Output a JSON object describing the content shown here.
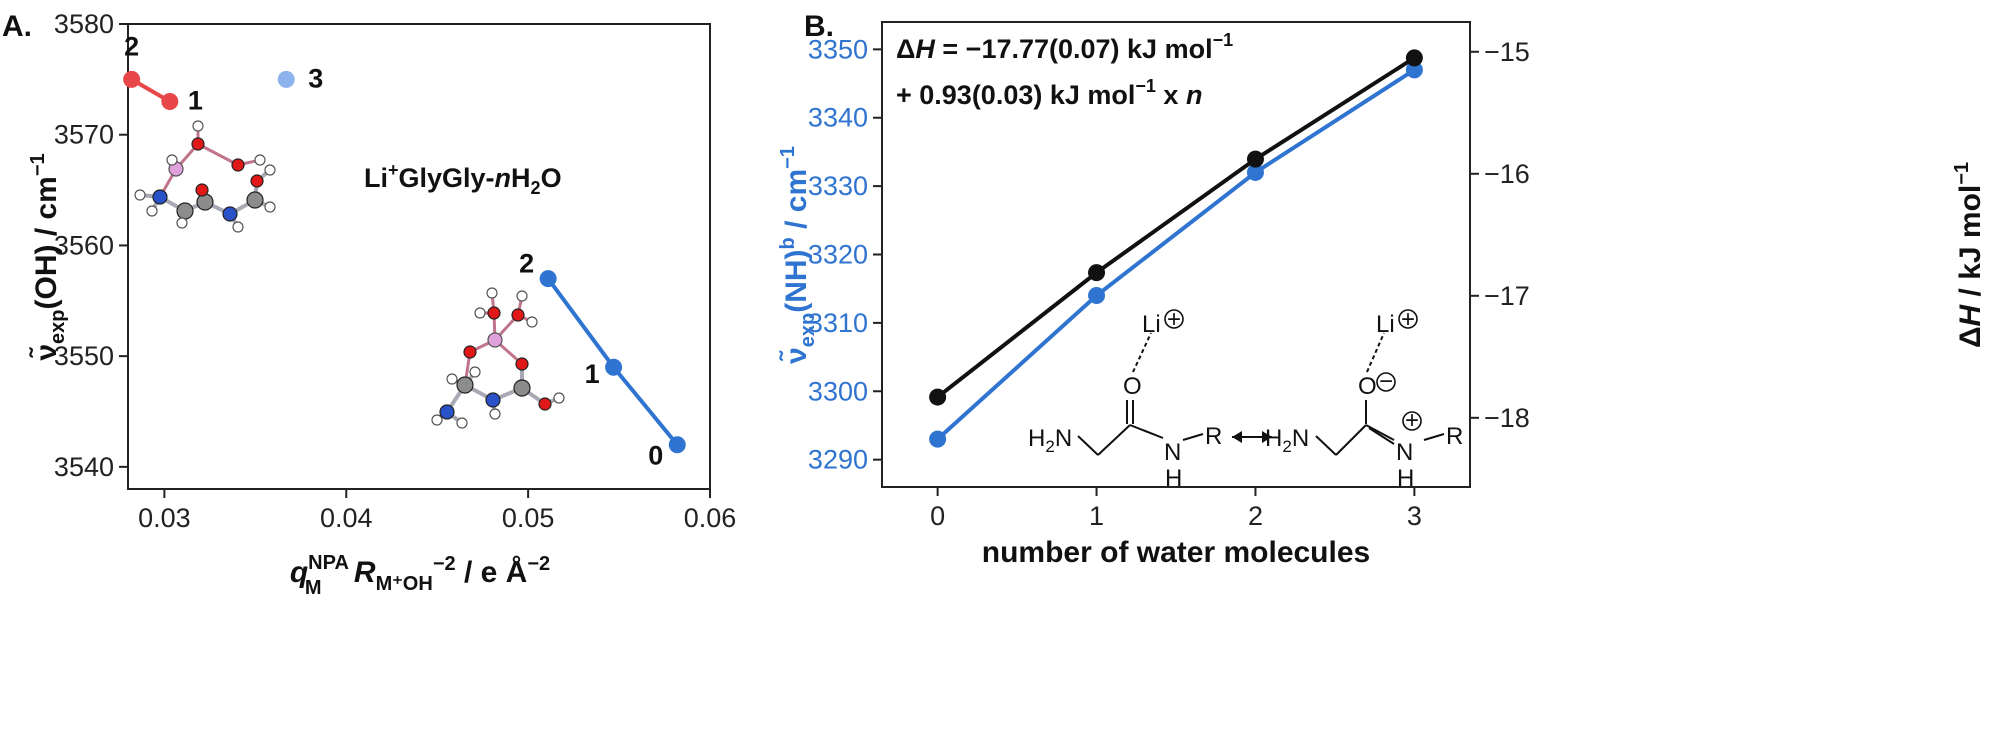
{
  "chart_data": [
    {
      "type": "scatter",
      "panel_label": "A.",
      "xlabel_parts": {
        "q": "q",
        "q_sup": "NPA",
        "q_sub": "M",
        "r": " R",
        "r_sub": "M⁺OH",
        "r_sup": "−2",
        "unit": " / e Å",
        "unit_sup": "−2"
      },
      "ylabel_parts": {
        "nu": "ν̃",
        "sub": "exp",
        "main": "(OH) / cm",
        "sup": "−1"
      },
      "xlim": [
        0.028,
        0.06
      ],
      "ylim": [
        3538,
        3580
      ],
      "xticks": [
        0.03,
        0.04,
        0.05,
        0.06
      ],
      "xtick_labels": [
        "0.03",
        "0.04",
        "0.05",
        "0.06"
      ],
      "yticks": [
        3540,
        3550,
        3560,
        3570,
        3580
      ],
      "ytick_labels": [
        "3540",
        "3550",
        "3560",
        "3570",
        "3580"
      ],
      "annotation": {
        "prefix": "Li",
        "sup": "+",
        "body": "GlyGly-",
        "n": "n",
        "h": "H",
        "sub": "2",
        "o": "O"
      },
      "series": [
        {
          "color": "#e8474a",
          "connected": true,
          "points": [
            {
              "x": 0.0282,
              "y": 3575,
              "label": "2"
            },
            {
              "x": 0.0303,
              "y": 3573,
              "label": "1"
            }
          ]
        },
        {
          "color": "#8db3ec",
          "connected": false,
          "points": [
            {
              "x": 0.0367,
              "y": 3575,
              "label": "3"
            }
          ]
        },
        {
          "color": "#2f74d0",
          "connected": true,
          "points": [
            {
              "x": 0.0511,
              "y": 3557,
              "label": "2"
            },
            {
              "x": 0.0547,
              "y": 3549,
              "label": "1"
            },
            {
              "x": 0.0582,
              "y": 3542,
              "label": "0"
            }
          ]
        }
      ],
      "grid": false
    },
    {
      "type": "line",
      "panel_label": "B.",
      "xlabel": "number of water molecules",
      "ylabel_left_parts": {
        "nu": "ν̃",
        "sub": "exp",
        "main": "(NH)",
        "sup": "b",
        "unit": " / cm",
        "unit_sup": "−1"
      },
      "ylabel_right_parts": {
        "delta": "Δ",
        "h": "H",
        "unit": " / kJ mol",
        "sup": "−1"
      },
      "xlim": [
        -0.35,
        3.35
      ],
      "ylim_left": [
        3286,
        3354
      ],
      "ylim_right": [
        -18.567,
        -14.756
      ],
      "xticks": [
        0,
        1,
        2,
        3
      ],
      "xtick_labels": [
        "0",
        "1",
        "2",
        "3"
      ],
      "yticks_left": [
        3290,
        3300,
        3310,
        3320,
        3330,
        3340,
        3350
      ],
      "ytick_labels_left": [
        "3290",
        "3300",
        "3310",
        "3320",
        "3330",
        "3340",
        "3350"
      ],
      "yticks_right": [
        -18,
        -17,
        -16,
        -15
      ],
      "ytick_labels_right": [
        "−18",
        "−17",
        "−16",
        "−15"
      ],
      "equation": {
        "line1_delta": "Δ",
        "line1_h": "H",
        "line1_rest": " = −17.77(0.07) kJ mol",
        "line1_sup": "−1",
        "line2_rest": "+ 0.93(0.03) kJ mol",
        "line2_sup": "−1",
        "line2_x": " x ",
        "line2_n": "n"
      },
      "series": [
        {
          "axis": "left",
          "color": "#2f74d0",
          "x": [
            0,
            1,
            2,
            3
          ],
          "values": [
            3293,
            3314,
            3332,
            3347
          ]
        },
        {
          "axis": "right",
          "color": "#111111",
          "x": [
            0,
            1,
            2,
            3
          ],
          "values": [
            -17.83,
            -16.81,
            -15.88,
            -15.05
          ]
        }
      ],
      "chem_labels": {
        "li1": "Li",
        "o1": "O",
        "h2n1": "H",
        "h2n1_sub": "2",
        "h2n1_n": "N",
        "n1": "N",
        "h1": "H",
        "r1": "R",
        "li2": "Li",
        "o2": "O",
        "h2n2": "H",
        "h2n2_sub": "2",
        "h2n2_n": "N",
        "n2": "N",
        "h2": "H",
        "r2": "R",
        "plus": "+",
        "minus": "−"
      },
      "grid": false
    }
  ]
}
